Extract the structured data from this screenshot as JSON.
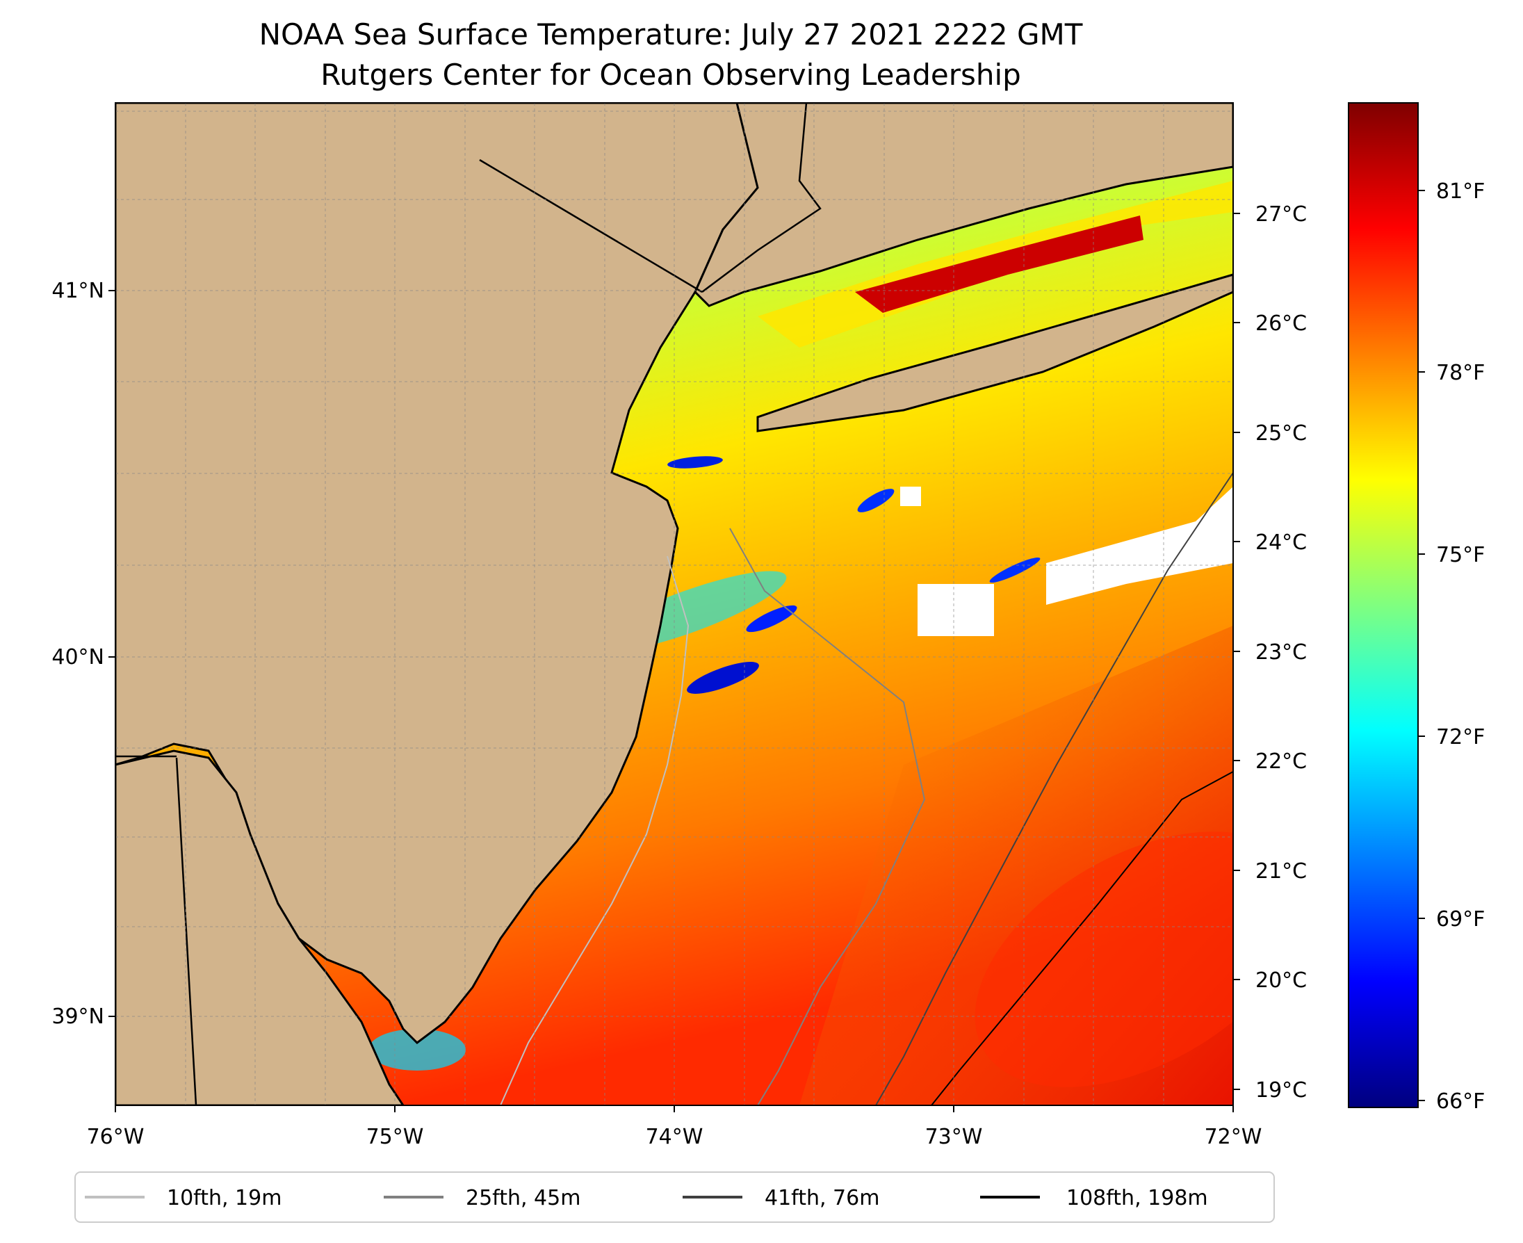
{
  "title": {
    "line1": "NOAA Sea Surface Temperature: July 27 2021 2222 GMT",
    "line2": "Rutgers Center for Ocean Observing Leadership"
  },
  "map": {
    "lon_range": [
      -76,
      -72
    ],
    "lat_range": [
      38.75,
      41.52
    ],
    "x_ticks": [
      "76°W",
      "75°W",
      "74°W",
      "73°W",
      "72°W"
    ],
    "y_ticks": [
      "41°N",
      "40°N",
      "39°N"
    ],
    "land_color": "#d2b48c",
    "grid": true
  },
  "colorbar": {
    "colormap": "jet",
    "celsius_range": [
      18.9,
      28.0
    ],
    "celsius_ticks": [
      "27°C",
      "26°C",
      "25°C",
      "24°C",
      "23°C",
      "22°C",
      "21°C",
      "20°C",
      "19°C"
    ],
    "fahrenheit_ticks": [
      "81°F",
      "78°F",
      "75°F",
      "72°F",
      "69°F",
      "66°F"
    ]
  },
  "legend": {
    "placement": "bottom",
    "items": [
      {
        "label": "10fth, 19m",
        "color": "#c0c0c0"
      },
      {
        "label": "25fth, 45m",
        "color": "#808080"
      },
      {
        "label": "41fth, 76m",
        "color": "#404040"
      },
      {
        "label": "108fth, 198m",
        "color": "#000000"
      }
    ]
  }
}
